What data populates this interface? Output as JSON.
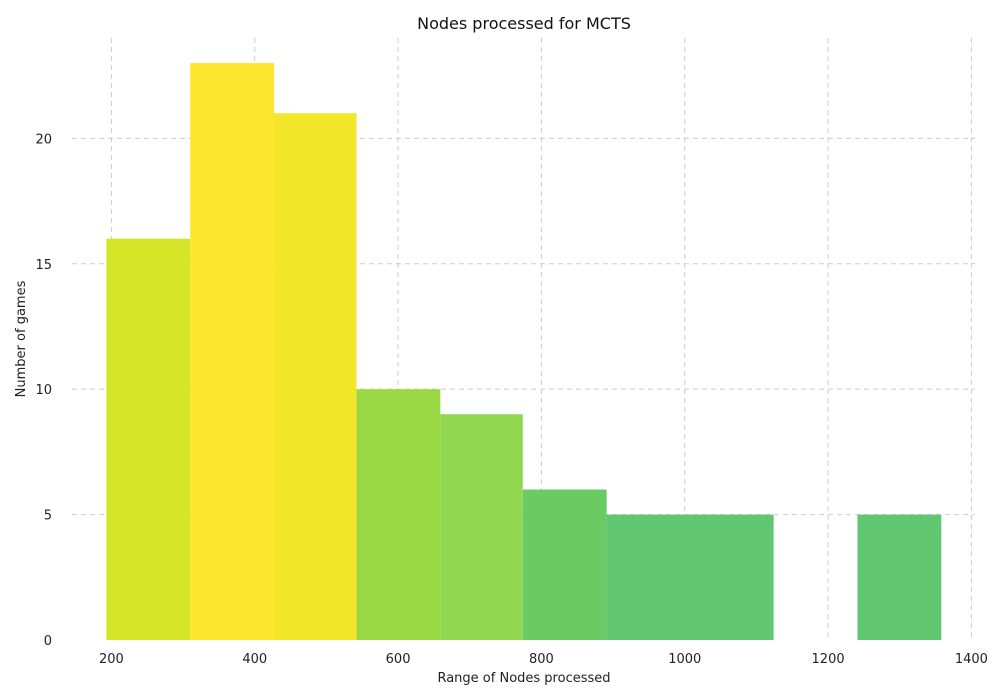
{
  "chart_data": {
    "type": "bar",
    "title": "Nodes processed for MCTS",
    "xlabel": "Range of Nodes processed",
    "ylabel": "Number of games",
    "xlim": [
      145,
      1405
    ],
    "ylim": [
      0,
      24
    ],
    "x_ticks": [
      200,
      400,
      600,
      800,
      1000,
      1200,
      1400
    ],
    "y_ticks": [
      0,
      5,
      10,
      15,
      20
    ],
    "grid": true,
    "bins": [
      {
        "start": 193,
        "end": 310,
        "count": 16,
        "color": "#d3e41e"
      },
      {
        "start": 310,
        "end": 427,
        "count": 23,
        "color": "#fce524"
      },
      {
        "start": 427,
        "end": 542,
        "count": 21,
        "color": "#f0e51e"
      },
      {
        "start": 542,
        "end": 659,
        "count": 10,
        "color": "#95d63c"
      },
      {
        "start": 659,
        "end": 774,
        "count": 9,
        "color": "#8cd649"
      },
      {
        "start": 774,
        "end": 891,
        "count": 6,
        "color": "#64c95f"
      },
      {
        "start": 891,
        "end": 1008,
        "count": 5,
        "color": "#5ac56a"
      },
      {
        "start": 1008,
        "end": 1124,
        "count": 5,
        "color": "#5ac56a"
      },
      {
        "start": 1124,
        "end": 1241,
        "count": 0,
        "color": "#5ac56a"
      },
      {
        "start": 1241,
        "end": 1358,
        "count": 5,
        "color": "#5ac56a"
      }
    ]
  }
}
